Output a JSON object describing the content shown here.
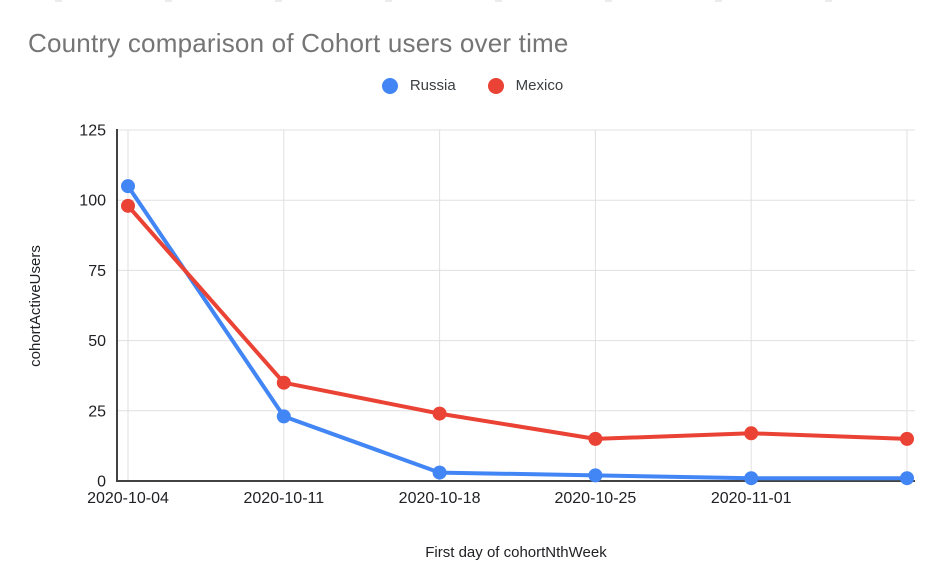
{
  "page": {
    "background": "#ffffff"
  },
  "chart_data": {
    "type": "line",
    "title": "Country comparison of Cohort users over time",
    "title_color": "#757575",
    "xlabel": "First day of cohortNthWeek",
    "ylabel": "cohortActiveUsers",
    "categories": [
      "2020-10-04",
      "2020-10-11",
      "2020-10-18",
      "2020-10-25",
      "2020-11-01",
      ""
    ],
    "series": [
      {
        "name": "Russia",
        "color": "#4285F4",
        "values": [
          105,
          23,
          3,
          2,
          1,
          1
        ]
      },
      {
        "name": "Mexico",
        "color": "#EA4335",
        "values": [
          98,
          35,
          24,
          15,
          17,
          15
        ]
      }
    ],
    "ylim": [
      0,
      125
    ],
    "yticks": [
      0,
      25,
      50,
      75,
      100,
      125
    ],
    "grid": true,
    "legend_position": "top"
  }
}
